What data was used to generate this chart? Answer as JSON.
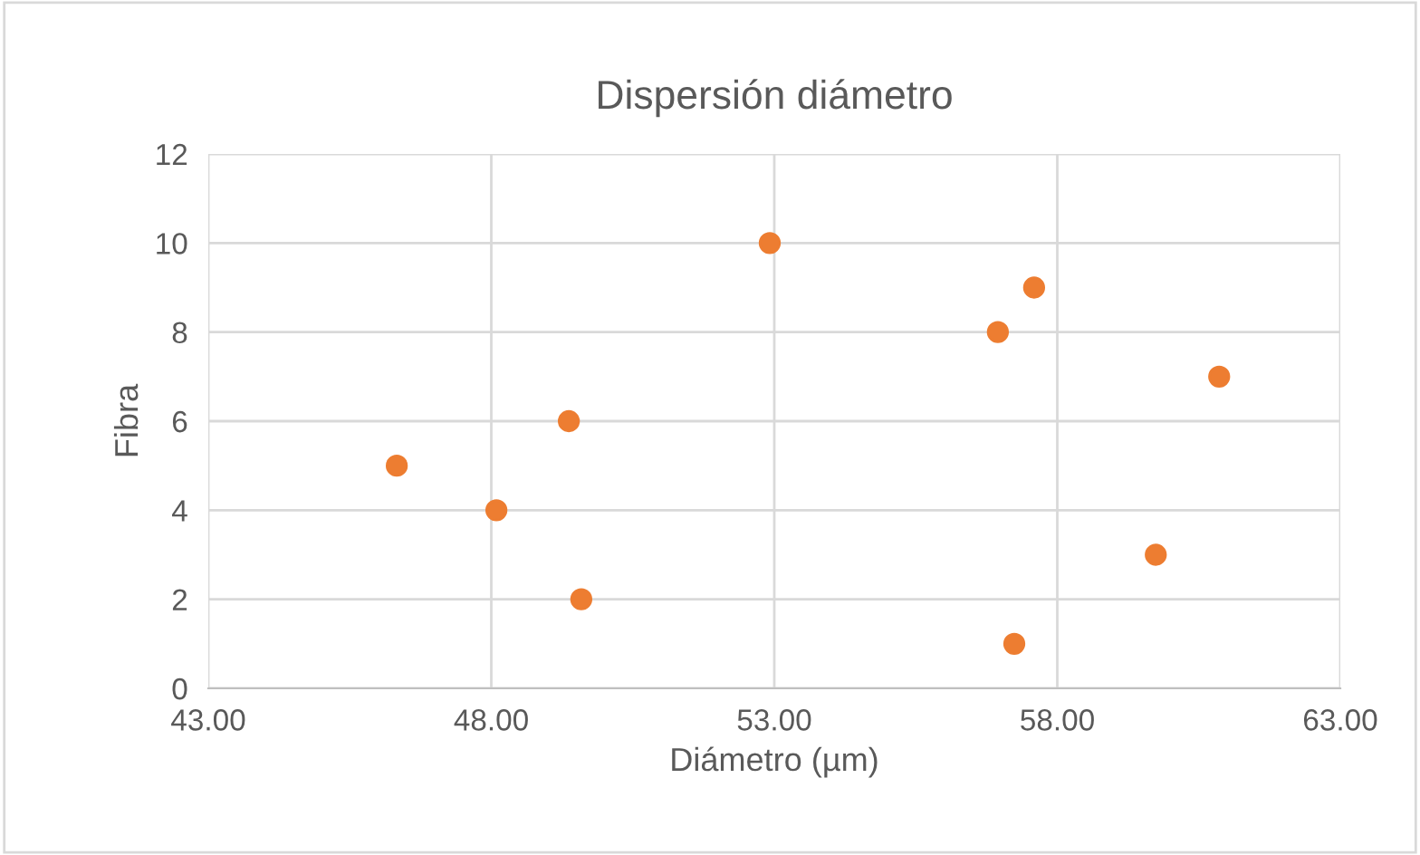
{
  "chart_data": {
    "type": "scatter",
    "title": "Dispersión diámetro",
    "xlabel": "Diámetro (µm)",
    "ylabel": "Fibra",
    "x": [
      46.33,
      48.09,
      49.37,
      49.59,
      52.92,
      56.95,
      57.59,
      57.24,
      59.74,
      60.86
    ],
    "series": [
      {
        "color": "#ed7d31",
        "values": [
          5,
          4,
          6,
          2,
          10,
          8,
          9,
          1,
          3,
          7
        ]
      }
    ],
    "xlim": [
      43,
      63
    ],
    "xticks": [
      {
        "value": 43,
        "label": "43.00"
      },
      {
        "value": 48,
        "label": "48.00"
      },
      {
        "value": 53,
        "label": "53.00"
      },
      {
        "value": 58,
        "label": "58.00"
      },
      {
        "value": 63,
        "label": "63.00"
      }
    ],
    "ylim": [
      0,
      12
    ],
    "yticks": [
      0,
      2,
      4,
      6,
      8,
      10,
      12
    ],
    "grid": true,
    "marker": "circle"
  }
}
